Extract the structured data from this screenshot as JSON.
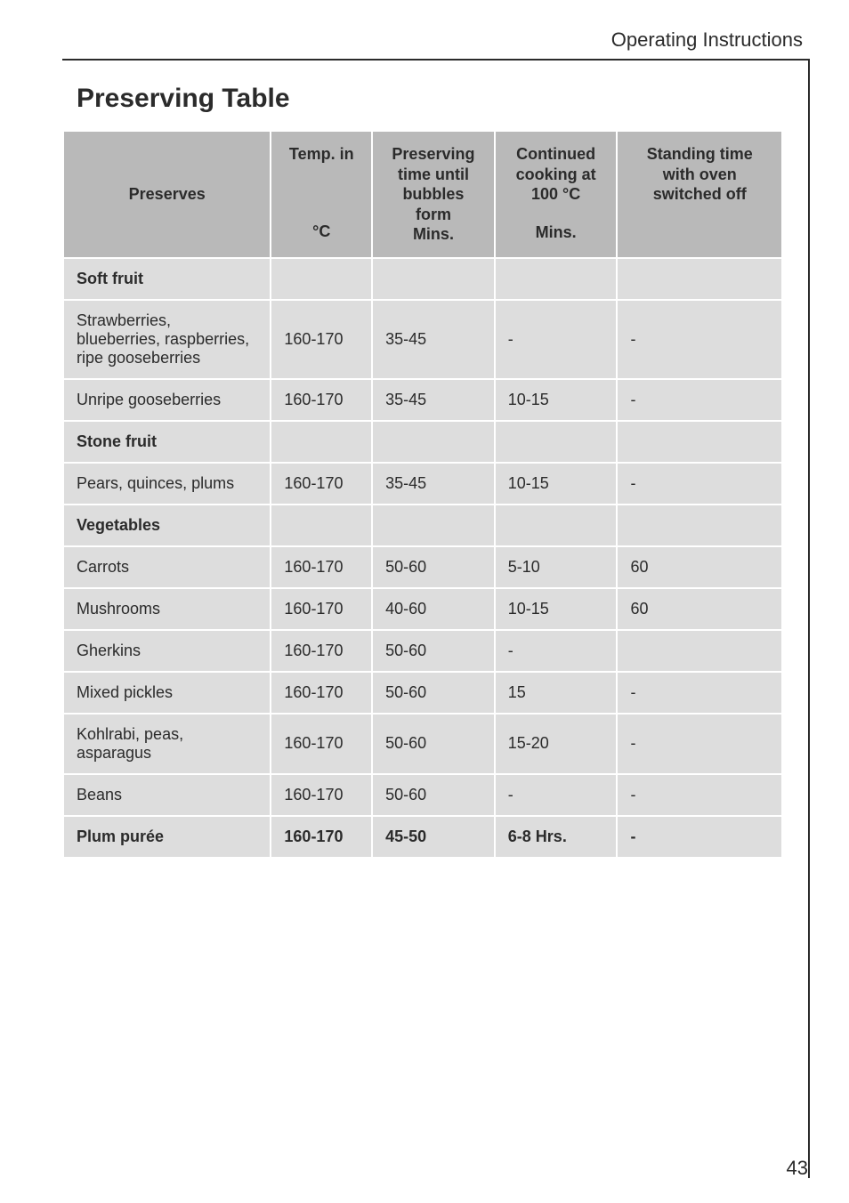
{
  "header": "Operating Instructions",
  "title": "Preserving Table",
  "pageNumber": "43",
  "columns": [
    {
      "line1": "Preserves",
      "line2": ""
    },
    {
      "line1": "Temp. in",
      "line2": "°C"
    },
    {
      "line1": "Preserving time until bubbles form",
      "line2": "Mins."
    },
    {
      "line1": "Continued cooking at 100 °C",
      "line2": "Mins."
    },
    {
      "line1": "Standing time with oven switched off",
      "line2": ""
    }
  ],
  "rows": [
    {
      "section": true,
      "cells": [
        "Soft fruit",
        "",
        "",
        "",
        ""
      ]
    },
    {
      "section": false,
      "cells": [
        "Strawberries, blueberries, raspberries, ripe gooseberries",
        "160-170",
        "35-45",
        "-",
        "-"
      ]
    },
    {
      "section": false,
      "cells": [
        "Unripe gooseberries",
        "160-170",
        "35-45",
        "10-15",
        "-"
      ]
    },
    {
      "section": true,
      "cells": [
        "Stone fruit",
        "",
        "",
        "",
        ""
      ]
    },
    {
      "section": false,
      "cells": [
        "Pears, quinces, plums",
        "160-170",
        "35-45",
        "10-15",
        "-"
      ]
    },
    {
      "section": true,
      "cells": [
        "Vegetables",
        "",
        "",
        "",
        ""
      ]
    },
    {
      "section": false,
      "cells": [
        "Carrots",
        "160-170",
        "50-60",
        "5-10",
        "60"
      ]
    },
    {
      "section": false,
      "cells": [
        "Mushrooms",
        "160-170",
        "40-60",
        "10-15",
        "60"
      ]
    },
    {
      "section": false,
      "cells": [
        "Gherkins",
        "160-170",
        "50-60",
        "-",
        ""
      ]
    },
    {
      "section": false,
      "cells": [
        "Mixed pickles",
        "160-170",
        "50-60",
        "15",
        "-"
      ]
    },
    {
      "section": false,
      "cells": [
        "Kohlrabi, peas, asparagus",
        "160-170",
        "50-60",
        "15-20",
        "-"
      ]
    },
    {
      "section": false,
      "cells": [
        "Beans",
        "160-170",
        "50-60",
        "-",
        "-"
      ]
    },
    {
      "section": true,
      "cells": [
        "Plum purée",
        "160-170",
        "45-50",
        "6-8 Hrs.",
        "-"
      ]
    }
  ]
}
